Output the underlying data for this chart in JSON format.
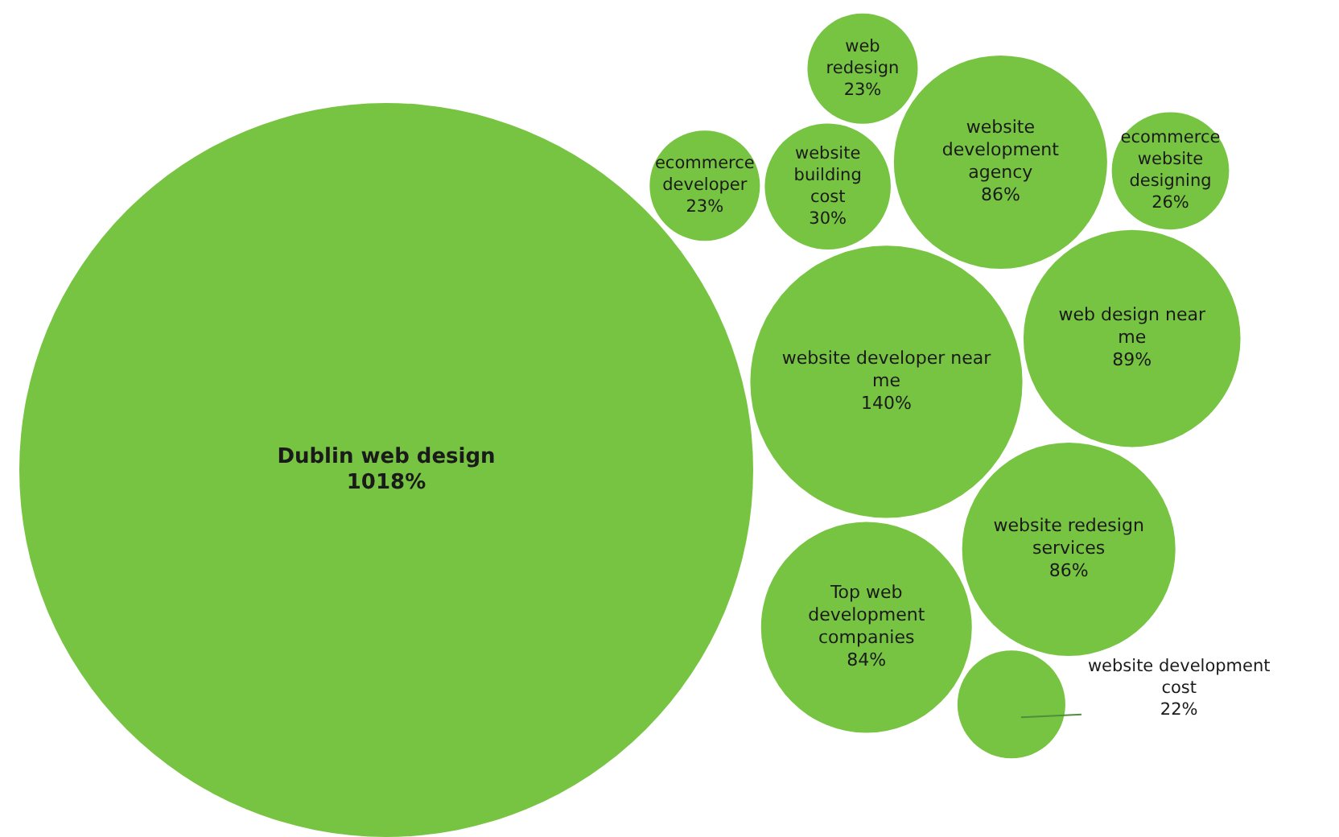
{
  "chart_data": {
    "type": "other",
    "categories": [
      "Dublin web design",
      "ecommerce developer",
      "web redesign",
      "website redesign services",
      "Top web development companies",
      "website development agency",
      "website development cost",
      "ecommerce website designing",
      "website building cost",
      "website developer near me",
      "web design near me"
    ],
    "values": [
      1018,
      23,
      23,
      86,
      84,
      86,
      22,
      26,
      30,
      140,
      89
    ],
    "value_labels": [
      "1018%",
      "23%",
      "23%",
      "86%",
      "84%",
      "86%",
      "22%",
      "26%",
      "30%",
      "140%",
      "89%"
    ],
    "color": "#76c442"
  }
}
